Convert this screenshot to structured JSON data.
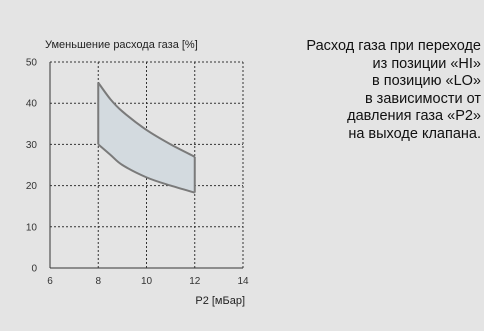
{
  "chart_data": {
    "type": "area",
    "title": "Уменьшение расхода газа [%]",
    "xlabel": "P2 [мБар]",
    "ylabel": "",
    "xlim": [
      6,
      14
    ],
    "ylim": [
      0,
      50
    ],
    "x_ticks": [
      "6",
      "8",
      "10",
      "12",
      "14"
    ],
    "y_ticks": [
      "0",
      "10",
      "20",
      "30",
      "40",
      "50"
    ],
    "grid": true,
    "band": {
      "upper": [
        [
          8,
          45
        ],
        [
          8.5,
          41
        ],
        [
          9,
          38
        ],
        [
          10,
          33.5
        ],
        [
          11,
          30
        ],
        [
          12,
          27
        ]
      ],
      "lower": [
        [
          8,
          30
        ],
        [
          8.5,
          27.5
        ],
        [
          9,
          25
        ],
        [
          10,
          22
        ],
        [
          11,
          20
        ],
        [
          12,
          18.3
        ]
      ],
      "fill_color": "#d3dadf",
      "line_color": "#7a7a7a"
    }
  },
  "caption": {
    "lines": [
      "Расход газа при переходе",
      "из позиции «HI»",
      "в  позицию «LO»",
      "в зависимости от",
      "давления газа «P2»",
      "на выходе  клапана."
    ]
  }
}
